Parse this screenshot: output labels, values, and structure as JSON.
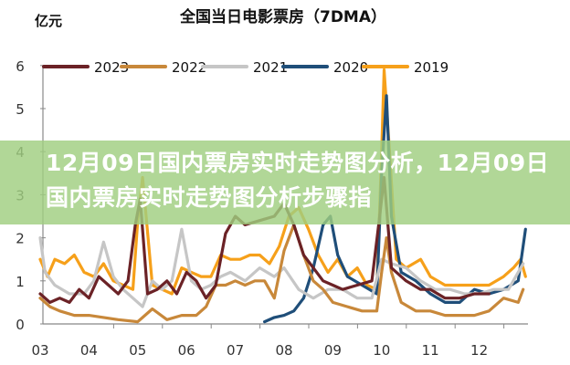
{
  "chart_data": {
    "type": "line",
    "title": "全国当日电影票房（7DMA）",
    "ylabel": "亿元",
    "xlabel": "",
    "ylim": [
      0,
      6
    ],
    "xlim": [
      3,
      13
    ],
    "yticks": [
      "0",
      "1",
      "2",
      "3",
      "4",
      "5",
      "6"
    ],
    "xticks": [
      {
        "label": "03",
        "value": 3
      },
      {
        "label": "04",
        "value": 4
      },
      {
        "label": "05",
        "value": 5
      },
      {
        "label": "06",
        "value": 6
      },
      {
        "label": "07",
        "value": 7
      },
      {
        "label": "08",
        "value": 8
      },
      {
        "label": "09",
        "value": 9
      },
      {
        "label": "10",
        "value": 10
      },
      {
        "label": "11",
        "value": 11
      },
      {
        "label": "12",
        "value": 12
      }
    ],
    "legend_position": "top",
    "grid": false,
    "series": [
      {
        "name": "2023",
        "color": "#6b2226",
        "x": [
          3,
          3.2,
          3.4,
          3.6,
          3.8,
          4.0,
          4.2,
          4.4,
          4.6,
          4.8,
          4.95,
          5.05,
          5.2,
          5.4,
          5.6,
          5.8,
          6.0,
          6.2,
          6.4,
          6.6,
          6.8,
          7.0,
          7.2,
          7.5,
          7.8,
          8.0,
          8.2,
          8.4,
          8.6,
          8.8,
          9.0,
          9.2,
          9.5,
          9.8,
          9.95,
          10.05,
          10.2,
          10.5,
          10.8,
          11.0,
          11.3,
          11.6,
          11.9,
          12.2
        ],
        "y": [
          0.7,
          0.5,
          0.6,
          0.5,
          0.8,
          0.6,
          1.1,
          0.9,
          0.7,
          1.0,
          2.3,
          2.9,
          0.7,
          0.8,
          1.0,
          0.7,
          1.2,
          1.0,
          0.6,
          0.9,
          2.1,
          2.5,
          2.3,
          2.4,
          2.5,
          2.8,
          2.3,
          1.6,
          1.3,
          1.0,
          0.9,
          0.8,
          0.9,
          1.0,
          2.4,
          3.4,
          1.3,
          1.0,
          0.8,
          0.8,
          0.6,
          0.6,
          0.7,
          0.7
        ]
      },
      {
        "name": "2022",
        "color": "#c8883a",
        "x": [
          3,
          3.2,
          3.4,
          3.7,
          4.0,
          4.3,
          4.6,
          5.0,
          5.3,
          5.6,
          5.9,
          6.2,
          6.4,
          6.6,
          6.8,
          7.0,
          7.2,
          7.4,
          7.6,
          7.8,
          8.0,
          8.2,
          8.4,
          8.6,
          8.8,
          9.0,
          9.3,
          9.6,
          9.9,
          10.0,
          10.1,
          10.2,
          10.4,
          10.7,
          11.0,
          11.3,
          11.6,
          11.9,
          12.2,
          12.5,
          12.8,
          12.9
        ],
        "y": [
          0.6,
          0.4,
          0.3,
          0.2,
          0.2,
          0.15,
          0.1,
          0.05,
          0.35,
          0.1,
          0.2,
          0.2,
          0.4,
          0.9,
          0.9,
          1.0,
          0.9,
          1.0,
          1.0,
          0.6,
          1.7,
          2.3,
          1.6,
          1.0,
          0.8,
          0.5,
          0.4,
          0.3,
          0.3,
          1.2,
          2.0,
          1.2,
          0.5,
          0.3,
          0.3,
          0.2,
          0.2,
          0.2,
          0.3,
          0.6,
          0.5,
          0.8
        ]
      },
      {
        "name": "2021",
        "color": "#c6c6c6",
        "x": [
          3,
          3.1,
          3.3,
          3.6,
          3.9,
          4.1,
          4.3,
          4.5,
          4.7,
          4.9,
          5.1,
          5.3,
          5.5,
          5.7,
          5.9,
          6.1,
          6.3,
          6.5,
          6.7,
          6.9,
          7.2,
          7.5,
          7.8,
          8.0,
          8.3,
          8.6,
          8.9,
          9.2,
          9.5,
          9.8,
          10.0,
          10.2,
          10.5,
          10.8,
          11.1,
          11.4,
          11.7,
          12.0,
          12.3,
          12.6,
          12.9
        ],
        "y": [
          2.0,
          1.2,
          0.9,
          0.7,
          0.7,
          1.0,
          1.9,
          1.1,
          0.8,
          0.6,
          0.4,
          1.0,
          0.8,
          1.0,
          2.2,
          1.0,
          0.8,
          0.9,
          1.1,
          1.2,
          1.0,
          1.3,
          1.1,
          1.3,
          0.8,
          0.6,
          0.8,
          0.8,
          0.6,
          0.6,
          1.5,
          1.4,
          1.3,
          1.0,
          0.8,
          0.8,
          0.7,
          0.7,
          0.8,
          0.8,
          1.4
        ]
      },
      {
        "name": "2020",
        "color": "#1f4e79",
        "x": [
          7.6,
          7.8,
          8.0,
          8.2,
          8.4,
          8.6,
          8.8,
          8.95,
          9.1,
          9.3,
          9.6,
          9.9,
          10.0,
          10.1,
          10.2,
          10.4,
          10.7,
          11.0,
          11.3,
          11.6,
          11.9,
          12.2,
          12.5,
          12.8,
          12.95
        ],
        "y": [
          0.05,
          0.15,
          0.2,
          0.3,
          0.6,
          1.3,
          2.3,
          2.5,
          1.6,
          1.1,
          0.9,
          0.7,
          3.5,
          5.3,
          2.5,
          1.2,
          1.0,
          0.7,
          0.5,
          0.5,
          0.8,
          0.7,
          0.8,
          1.0,
          2.2
        ]
      },
      {
        "name": "2019",
        "color": "#f6a01a",
        "x": [
          3,
          3.15,
          3.3,
          3.5,
          3.7,
          3.9,
          4.1,
          4.3,
          4.5,
          4.7,
          4.9,
          5.0,
          5.1,
          5.3,
          5.5,
          5.7,
          5.9,
          6.1,
          6.3,
          6.5,
          6.7,
          6.9,
          7.1,
          7.3,
          7.5,
          7.7,
          7.9,
          8.1,
          8.3,
          8.5,
          8.7,
          8.9,
          9.1,
          9.3,
          9.5,
          9.7,
          9.9,
          10.0,
          10.05,
          10.15,
          10.3,
          10.5,
          10.8,
          11.0,
          11.3,
          11.6,
          11.9,
          12.2,
          12.5,
          12.7,
          12.85,
          12.95
        ],
        "y": [
          1.5,
          1.1,
          1.5,
          1.4,
          1.6,
          1.2,
          1.1,
          1.4,
          1.0,
          0.9,
          0.8,
          2.4,
          3.4,
          0.9,
          0.8,
          0.7,
          1.3,
          1.2,
          1.1,
          1.1,
          1.6,
          1.5,
          1.5,
          1.6,
          1.6,
          1.4,
          1.8,
          2.5,
          2.7,
          2.2,
          1.6,
          1.2,
          1.5,
          1.1,
          1.3,
          0.9,
          0.8,
          4.0,
          5.9,
          4.2,
          1.5,
          1.3,
          1.5,
          1.1,
          0.9,
          0.9,
          0.9,
          0.9,
          1.1,
          1.3,
          1.5,
          1.1
        ]
      }
    ]
  },
  "banner": {
    "text": "12月09日国内票房实时走势图分析，12月09日国内票房实时走势图分析步骤指"
  }
}
